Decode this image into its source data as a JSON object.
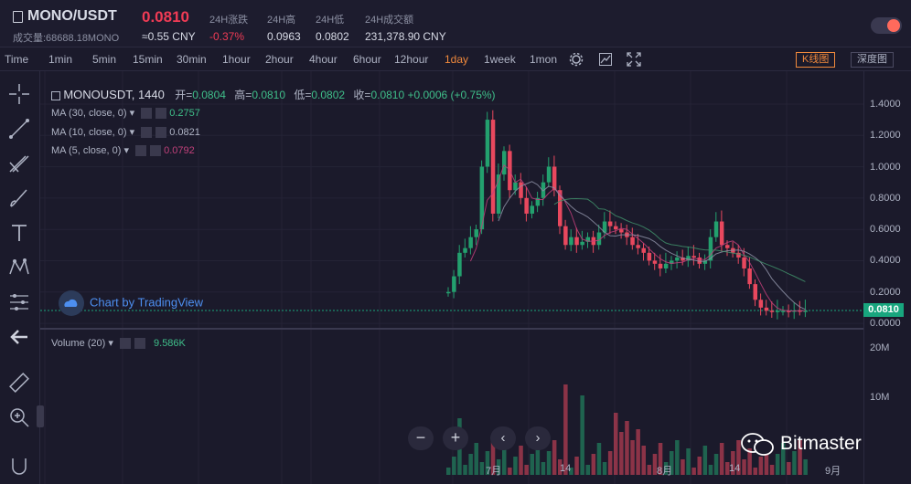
{
  "header": {
    "pair": "MONO/USDT",
    "volume_label": "成交量:68688.18MONO",
    "price": "0.0810",
    "cny": "≈0.55 CNY",
    "stats": [
      {
        "label": "24H涨跌",
        "value": "-0.37%",
        "color": "#f03b55"
      },
      {
        "label": "24H高",
        "value": "0.0963"
      },
      {
        "label": "24H低",
        "value": "0.0802"
      },
      {
        "label": "24H成交额",
        "value": "231,378.90 CNY"
      }
    ]
  },
  "timeframes": [
    "Time",
    "1min",
    "5min",
    "15min",
    "30min",
    "1hour",
    "2hour",
    "4hour",
    "6hour",
    "12hour",
    "1day",
    "1week",
    "1mon"
  ],
  "active_timeframe": "1day",
  "view_buttons": {
    "kline": "K线图",
    "depth": "深度图"
  },
  "legend": {
    "symbol": "MONOUSDT, 1440",
    "open_label": "开=",
    "open": "0.0804",
    "high_label": "高=",
    "high": "0.0810",
    "low_label": "低=",
    "low": "0.0802",
    "close_label": "收=",
    "close": "0.0810",
    "change": "+0.0006 (+0.75%)",
    "ma": [
      {
        "label": "MA (30, close, 0)",
        "value": "0.2757",
        "color": "#3fbf8a"
      },
      {
        "label": "MA (10, close, 0)",
        "value": "0.0821",
        "color": "#aeb3c4"
      },
      {
        "label": "MA (5, close, 0)",
        "value": "0.0792",
        "color": "#c0407a"
      }
    ],
    "volume": {
      "label": "Volume (20)",
      "value": "9.586K"
    }
  },
  "watermark": "Chart by TradingView",
  "brand": "Bitmaster",
  "price_axis": [
    "1.4000",
    "1.2000",
    "1.0000",
    "0.8000",
    "0.6000",
    "0.4000",
    "0.2000",
    "0.0000"
  ],
  "current_price_tag": "0.0810",
  "volume_axis": [
    "20M",
    "10M"
  ],
  "x_axis": [
    "7月",
    "14",
    "8月",
    "14",
    "9月"
  ],
  "colors": {
    "up": "#23a06e",
    "down": "#e8485e",
    "bg": "#1b1a2b",
    "accent": "#f0893c"
  }
}
